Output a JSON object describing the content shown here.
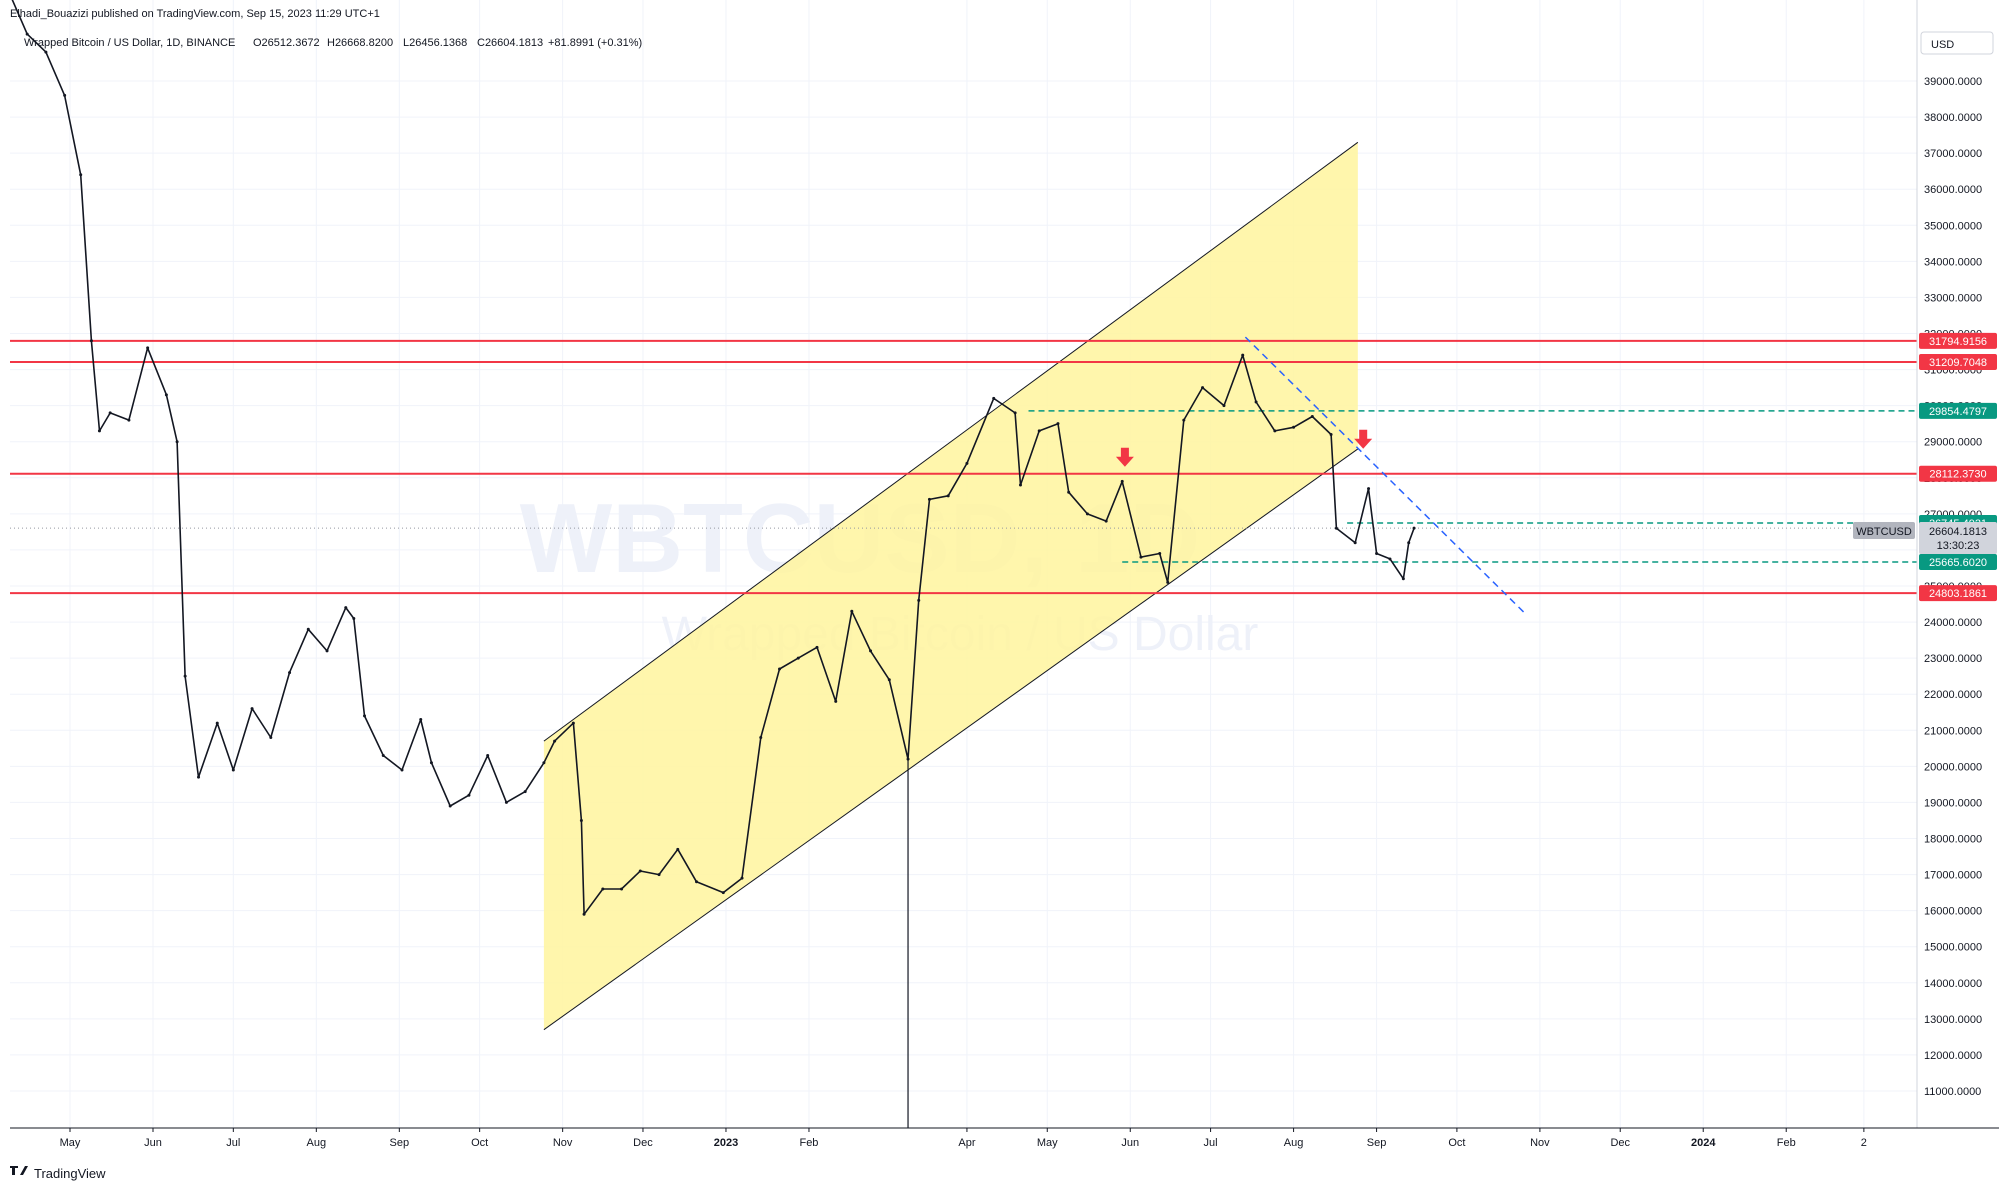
{
  "header": {
    "publisher": "Elhadi_Bouazizi published on TradingView.com, Sep 15, 2023 11:29 UTC+1",
    "symbol_desc": "Wrapped Bitcoin / US Dollar, 1D, BINANCE",
    "ohlc": {
      "open": "O26512.3672",
      "high": "H26668.8200",
      "low": "L26456.1368",
      "close": "C26604.1813",
      "change": "+81.8991 (+0.31%)"
    }
  },
  "currency_button": "USD",
  "watermark": {
    "symbol": "WBTCUSD, 1D",
    "name": "Wrapped Bitcoin / US Dollar"
  },
  "footer": {
    "brand": "TradingView"
  },
  "price_tag": {
    "symbol": "WBTCUSD",
    "price": "26604.1813",
    "countdown": "13:30:23"
  },
  "colors": {
    "red": "#f23645",
    "teal": "#089981",
    "blue": "#2962ff",
    "channel_fill": "#fff59d",
    "candle": "#131722",
    "grid": "#f0f3fa",
    "gray_tag": "#b2b5be"
  },
  "chart_data": {
    "type": "candlestick",
    "title": "Wrapped Bitcoin / US Dollar, 1D, BINANCE",
    "ylim": [
      10000,
      40000
    ],
    "y_ticks": [
      11000,
      12000,
      13000,
      14000,
      15000,
      16000,
      17000,
      18000,
      19000,
      20000,
      21000,
      22000,
      23000,
      24000,
      25000,
      26000,
      27000,
      28000,
      29000,
      30000,
      31000,
      32000,
      33000,
      34000,
      35000,
      36000,
      37000,
      38000,
      39000
    ],
    "y_tick_labels": [
      "11000.0000",
      "12000.0000",
      "13000.0000",
      "14000.0000",
      "15000.0000",
      "16000.0000",
      "17000.0000",
      "18000.0000",
      "19000.0000",
      "20000.0000",
      "21000.0000",
      "22000.0000",
      "23000.0000",
      "24000.0000",
      "25000.0000",
      "26000.0000",
      "27000.0000",
      "28000.0000",
      "29000.0000",
      "30000.0000",
      "31000.0000",
      "32000.0000",
      "33000.0000",
      "34000.0000",
      "35000.0000",
      "36000.0000",
      "37000.0000",
      "38000.0000",
      "39000.0000"
    ],
    "x_labels": [
      {
        "date": "2022-05-01",
        "label": "May",
        "bold": false
      },
      {
        "date": "2022-06-01",
        "label": "Jun",
        "bold": false
      },
      {
        "date": "2022-07-01",
        "label": "Jul",
        "bold": false
      },
      {
        "date": "2022-08-01",
        "label": "Aug",
        "bold": false
      },
      {
        "date": "2022-09-01",
        "label": "Sep",
        "bold": false
      },
      {
        "date": "2022-10-01",
        "label": "Oct",
        "bold": false
      },
      {
        "date": "2022-11-01",
        "label": "Nov",
        "bold": false
      },
      {
        "date": "2022-12-01",
        "label": "Dec",
        "bold": false
      },
      {
        "date": "2023-01-01",
        "label": "2023",
        "bold": true
      },
      {
        "date": "2023-02-01",
        "label": "Feb",
        "bold": false
      },
      {
        "date": "2023-04-01",
        "label": "Apr",
        "bold": false
      },
      {
        "date": "2023-05-01",
        "label": "May",
        "bold": false
      },
      {
        "date": "2023-06-01",
        "label": "Jun",
        "bold": false
      },
      {
        "date": "2023-07-01",
        "label": "Jul",
        "bold": false
      },
      {
        "date": "2023-08-01",
        "label": "Aug",
        "bold": false
      },
      {
        "date": "2023-09-01",
        "label": "Sep",
        "bold": false
      },
      {
        "date": "2023-10-01",
        "label": "Oct",
        "bold": false
      },
      {
        "date": "2023-11-01",
        "label": "Nov",
        "bold": false
      },
      {
        "date": "2023-12-01",
        "label": "Dec",
        "bold": false
      },
      {
        "date": "2024-01-01",
        "label": "2024",
        "bold": true
      },
      {
        "date": "2024-02-01",
        "label": "Feb",
        "bold": false
      },
      {
        "date": "2024-03-01",
        "label": "2",
        "bold": false
      }
    ],
    "series": [
      {
        "name": "WBTCUSD",
        "points": [
          [
            "2022-04-08",
            41500
          ],
          [
            "2022-04-15",
            40300
          ],
          [
            "2022-04-22",
            39800
          ],
          [
            "2022-04-29",
            38600
          ],
          [
            "2022-05-05",
            36400
          ],
          [
            "2022-05-09",
            31800
          ],
          [
            "2022-05-12",
            29300
          ],
          [
            "2022-05-16",
            29800
          ],
          [
            "2022-05-23",
            29600
          ],
          [
            "2022-05-30",
            31600
          ],
          [
            "2022-06-06",
            30300
          ],
          [
            "2022-06-10",
            29000
          ],
          [
            "2022-06-13",
            22500
          ],
          [
            "2022-06-18",
            19700
          ],
          [
            "2022-06-25",
            21200
          ],
          [
            "2022-07-01",
            19900
          ],
          [
            "2022-07-08",
            21600
          ],
          [
            "2022-07-15",
            20800
          ],
          [
            "2022-07-22",
            22600
          ],
          [
            "2022-07-29",
            23800
          ],
          [
            "2022-08-05",
            23200
          ],
          [
            "2022-08-12",
            24400
          ],
          [
            "2022-08-15",
            24100
          ],
          [
            "2022-08-19",
            21400
          ],
          [
            "2022-08-26",
            20300
          ],
          [
            "2022-09-02",
            19900
          ],
          [
            "2022-09-09",
            21300
          ],
          [
            "2022-09-13",
            20100
          ],
          [
            "2022-09-20",
            18900
          ],
          [
            "2022-09-27",
            19200
          ],
          [
            "2022-10-04",
            20300
          ],
          [
            "2022-10-11",
            19000
          ],
          [
            "2022-10-18",
            19300
          ],
          [
            "2022-10-25",
            20100
          ],
          [
            "2022-10-29",
            20700
          ],
          [
            "2022-11-05",
            21200
          ],
          [
            "2022-11-08",
            18500
          ],
          [
            "2022-11-09",
            15900
          ],
          [
            "2022-11-16",
            16600
          ],
          [
            "2022-11-23",
            16600
          ],
          [
            "2022-11-30",
            17100
          ],
          [
            "2022-12-07",
            17000
          ],
          [
            "2022-12-14",
            17700
          ],
          [
            "2022-12-21",
            16800
          ],
          [
            "2022-12-31",
            16500
          ],
          [
            "2023-01-07",
            16900
          ],
          [
            "2023-01-14",
            20800
          ],
          [
            "2023-01-21",
            22700
          ],
          [
            "2023-01-28",
            23000
          ],
          [
            "2023-02-04",
            23300
          ],
          [
            "2023-02-11",
            21800
          ],
          [
            "2023-02-17",
            24300
          ],
          [
            "2023-02-24",
            23200
          ],
          [
            "2023-03-03",
            22400
          ],
          [
            "2023-03-10",
            20200
          ],
          [
            "2023-03-14",
            24600
          ],
          [
            "2023-03-18",
            27400
          ],
          [
            "2023-03-25",
            27500
          ],
          [
            "2023-04-01",
            28400
          ],
          [
            "2023-04-11",
            30200
          ],
          [
            "2023-04-19",
            29800
          ],
          [
            "2023-04-21",
            27800
          ],
          [
            "2023-04-28",
            29300
          ],
          [
            "2023-05-05",
            29500
          ],
          [
            "2023-05-09",
            27600
          ],
          [
            "2023-05-16",
            27000
          ],
          [
            "2023-05-23",
            26800
          ],
          [
            "2023-05-29",
            27900
          ],
          [
            "2023-06-05",
            25800
          ],
          [
            "2023-06-12",
            25900
          ],
          [
            "2023-06-15",
            25100
          ],
          [
            "2023-06-21",
            29600
          ],
          [
            "2023-06-28",
            30500
          ],
          [
            "2023-07-06",
            30000
          ],
          [
            "2023-07-13",
            31400
          ],
          [
            "2023-07-18",
            30100
          ],
          [
            "2023-07-25",
            29300
          ],
          [
            "2023-08-01",
            29400
          ],
          [
            "2023-08-08",
            29700
          ],
          [
            "2023-08-15",
            29200
          ],
          [
            "2023-08-17",
            26600
          ],
          [
            "2023-08-24",
            26200
          ],
          [
            "2023-08-29",
            27700
          ],
          [
            "2023-09-01",
            25900
          ],
          [
            "2023-09-06",
            25750
          ],
          [
            "2023-09-11",
            25200
          ],
          [
            "2023-09-13",
            26200
          ],
          [
            "2023-09-15",
            26604
          ]
        ]
      }
    ],
    "horizontal_levels": [
      {
        "value": 31794.9156,
        "label": "31794.9156",
        "style": "solid",
        "color": "#f23645"
      },
      {
        "value": 31209.7048,
        "label": "31209.7048",
        "style": "solid",
        "color": "#f23645"
      },
      {
        "value": 29854.4797,
        "label": "29854.4797",
        "style": "dashed",
        "color": "#089981",
        "from_date": "2023-04-24"
      },
      {
        "value": 28112.373,
        "label": "28112.3730",
        "style": "solid",
        "color": "#f23645"
      },
      {
        "value": 26745.4921,
        "label": "26745.4921",
        "style": "dashed",
        "color": "#089981",
        "from_date": "2023-08-21"
      },
      {
        "value": 25665.602,
        "label": "25665.6020",
        "style": "dashed",
        "color": "#089981",
        "from_date": "2023-05-29"
      },
      {
        "value": 24803.1861,
        "label": "24803.1861",
        "style": "solid",
        "color": "#f23645"
      }
    ],
    "channel": {
      "upper": [
        [
          "2022-10-25",
          20700
        ],
        [
          "2023-08-25",
          37300
        ]
      ],
      "lower": [
        [
          "2022-10-25",
          12700
        ],
        [
          "2023-08-25",
          28800
        ]
      ]
    },
    "downtrend_line": [
      [
        "2023-07-14",
        31900
      ],
      [
        "2023-10-27",
        24200
      ]
    ],
    "arrows": [
      {
        "date": "2023-05-30",
        "value": 28500,
        "direction": "down",
        "color": "#f23645"
      },
      {
        "date": "2023-08-27",
        "value": 29000,
        "direction": "down",
        "color": "#f23645"
      }
    ],
    "grid": true
  }
}
